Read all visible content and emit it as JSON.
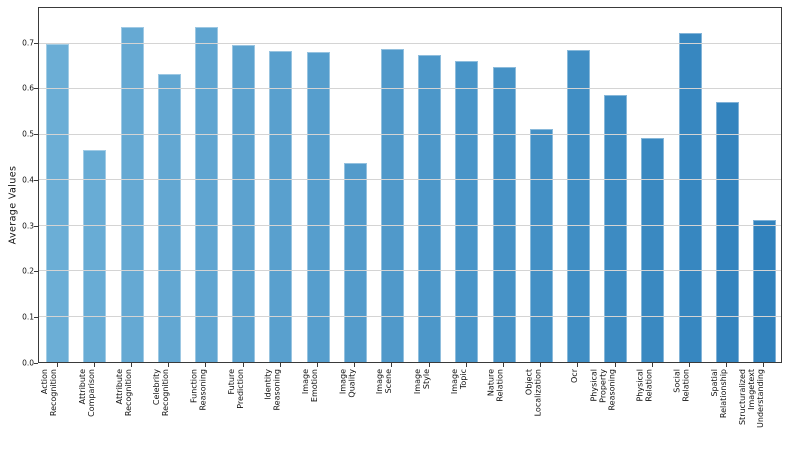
{
  "chart_data": {
    "type": "bar",
    "title": "",
    "xlabel": "",
    "ylabel": "Average Values",
    "ylim": [
      0,
      0.778
    ],
    "yticks": [
      0.0,
      0.1,
      0.2,
      0.3,
      0.4,
      0.5,
      0.6,
      0.7
    ],
    "grid": "horizontal, drawn over bars",
    "legend": "none",
    "categories": [
      "Action\nRecognition",
      "Attribute\nComparison",
      "Attribute\nRecognition",
      "Celebrity\nRecognition",
      "Function\nReasoning",
      "Future\nPrediction",
      "Identity\nReasoning",
      "Image\nEmotion",
      "Image\nQuality",
      "Image\nScene",
      "Image\nStyle",
      "Image\nTopic",
      "Nature\nRelation",
      "Object\nLocalization",
      "Ocr",
      "Physical\nProperty\nReasoning",
      "Physical\nRelation",
      "Social\nRelation",
      "Spatial\nRelationship",
      "Structuralized\nImagetext\nUnderstanding"
    ],
    "values": [
      0.7,
      0.466,
      0.737,
      0.633,
      0.737,
      0.696,
      0.684,
      0.681,
      0.437,
      0.688,
      0.675,
      0.662,
      0.648,
      0.512,
      0.685,
      0.586,
      0.492,
      0.723,
      0.572,
      0.312
    ],
    "colors": {
      "bar_gradient_start": "#6baed6",
      "bar_gradient_end": "#3182bd",
      "grid_color": "#d4d4d4",
      "spine_color": "#3a3a3a",
      "tick_text_color": "#111111",
      "background": "#ffffff"
    }
  }
}
